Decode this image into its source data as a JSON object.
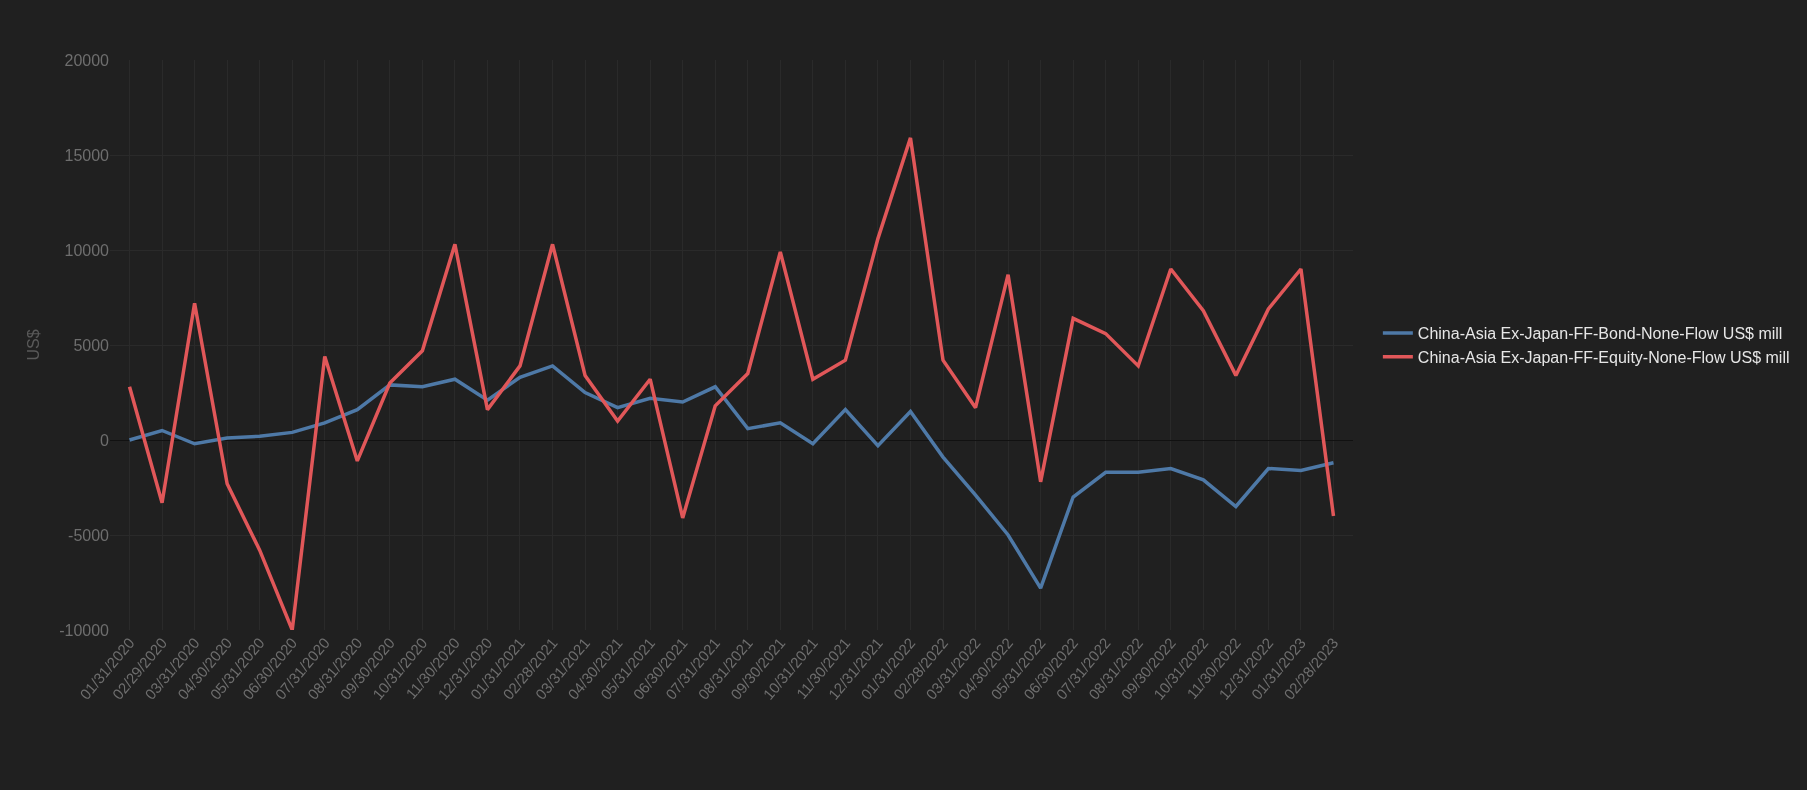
{
  "chart_data": {
    "type": "line",
    "ylabel": "US$",
    "categories": [
      "01/31/2020",
      "02/29/2020",
      "03/31/2020",
      "04/30/2020",
      "05/31/2020",
      "06/30/2020",
      "07/31/2020",
      "08/31/2020",
      "09/30/2020",
      "10/31/2020",
      "11/30/2020",
      "12/31/2020",
      "01/31/2021",
      "02/28/2021",
      "03/31/2021",
      "04/30/2021",
      "05/31/2021",
      "06/30/2021",
      "07/31/2021",
      "08/31/2021",
      "09/30/2021",
      "10/31/2021",
      "11/30/2021",
      "12/31/2021",
      "01/31/2022",
      "02/28/2022",
      "03/31/2022",
      "04/30/2022",
      "05/31/2022",
      "06/30/2022",
      "07/31/2022",
      "08/31/2022",
      "09/30/2022",
      "10/31/2022",
      "11/30/2022",
      "12/31/2022",
      "01/31/2023",
      "02/28/2023"
    ],
    "series": [
      {
        "name": "China-Asia Ex-Japan-FF-Bond-None-Flow US$ mill",
        "color": "#4e79a7",
        "values": [
          0,
          500,
          -200,
          100,
          200,
          400,
          900,
          1600,
          2900,
          2800,
          3200,
          2100,
          3300,
          3900,
          2500,
          1700,
          2200,
          2000,
          2800,
          600,
          900,
          -200,
          1600,
          -300,
          1500,
          -900,
          -2900,
          -5000,
          -7800,
          -3000,
          -1700,
          -1700,
          -1500,
          -2100,
          -3500,
          -1500,
          -1600,
          -1200
        ]
      },
      {
        "name": "China-Asia Ex-Japan-FF-Equity-None-Flow US$ mill",
        "color": "#e15759",
        "values": [
          2800,
          -3300,
          7200,
          -2300,
          -5800,
          -10000,
          4400,
          -1100,
          3000,
          4700,
          10300,
          1600,
          3900,
          10300,
          3400,
          1000,
          3200,
          -4100,
          1800,
          3500,
          9900,
          3200,
          4200,
          10600,
          15900,
          4200,
          1700,
          8700,
          -2200,
          6400,
          5600,
          3900,
          9000,
          6800,
          3400,
          6900,
          9000,
          -4000
        ]
      }
    ],
    "ylim": [
      -10000,
      20000
    ],
    "yticks": [
      -10000,
      -5000,
      0,
      5000,
      10000,
      15000,
      20000
    ],
    "grid": true,
    "legend": "right",
    "marker": "none",
    "line_style": "solid"
  }
}
